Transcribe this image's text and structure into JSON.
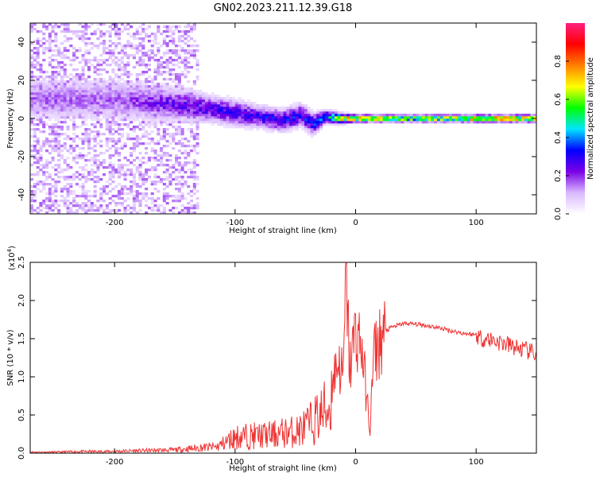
{
  "title": "GN02.2023.211.12.39.G18",
  "chart_data": [
    {
      "type": "heatmap",
      "xlabel": "Height of straight line (km)",
      "ylabel": "Frequency (Hz)",
      "xlim": [
        -270,
        150
      ],
      "ylim": [
        -50,
        50
      ],
      "x_ticks": [
        -200,
        -100,
        0,
        100
      ],
      "y_ticks": [
        -40,
        -20,
        0,
        20,
        40
      ],
      "colorbar": {
        "label": "Normalized spectral amplitude",
        "range": [
          0,
          1
        ],
        "ticks": [
          "0.0",
          "0.2",
          "0.4",
          "0.6",
          "0.8"
        ],
        "colormap": [
          "#ffffff",
          "#d9b8ff",
          "#7a00e6",
          "#0000ff",
          "#00e5ff",
          "#00ff00",
          "#ffff00",
          "#ff8000",
          "#ff0000",
          "#ff2080"
        ]
      },
      "ridge": [
        {
          "x": -200,
          "center": 10,
          "spread": 9,
          "amplitude": 0.18
        },
        {
          "x": -160,
          "center": 8,
          "spread": 8,
          "amplitude": 0.25
        },
        {
          "x": -140,
          "center": 7,
          "spread": 7,
          "amplitude": 0.28
        },
        {
          "x": -120,
          "center": 5,
          "spread": 6,
          "amplitude": 0.3
        },
        {
          "x": -100,
          "center": 3,
          "spread": 6,
          "amplitude": 0.3
        },
        {
          "x": -80,
          "center": 1,
          "spread": 5,
          "amplitude": 0.32
        },
        {
          "x": -60,
          "center": -1,
          "spread": 5,
          "amplitude": 0.35
        },
        {
          "x": -45,
          "center": 2,
          "spread": 5,
          "amplitude": 0.35
        },
        {
          "x": -35,
          "center": -3,
          "spread": 5,
          "amplitude": 0.35
        },
        {
          "x": -25,
          "center": 1,
          "spread": 3,
          "amplitude": 0.4
        },
        {
          "x": -10,
          "center": 0,
          "spread": 2,
          "amplitude": 0.8
        },
        {
          "x": 0,
          "center": 0,
          "spread": 1.5,
          "amplitude": 0.85
        },
        {
          "x": 50,
          "center": 0,
          "spread": 1.5,
          "amplitude": 0.7
        },
        {
          "x": 100,
          "center": 0,
          "spread": 1.5,
          "amplitude": 0.85
        },
        {
          "x": 150,
          "center": 0,
          "spread": 1.5,
          "amplitude": 0.85
        }
      ]
    },
    {
      "type": "line",
      "xlabel": "Height of straight line (km)",
      "ylabel": "SNR (10 * v/v)",
      "y_scale_label": "(x10",
      "y_scale_exponent": "4",
      "y_scale_suffix": ")",
      "xlim": [
        -270,
        150
      ],
      "ylim": [
        0,
        2.5
      ],
      "x_ticks": [
        -200,
        -100,
        0,
        100
      ],
      "y_ticks": [
        "0.0",
        "0.5",
        "1.0",
        "1.5",
        "2.0",
        "2.5"
      ],
      "color": "#ee3333",
      "series": [
        {
          "x": [
            -270,
            -250,
            -230,
            -210,
            -190,
            -170,
            -150,
            -130,
            -115,
            -100,
            -90,
            -80,
            -70,
            -60,
            -50,
            -40,
            -30,
            -20,
            -15,
            -10,
            -8,
            -5,
            0,
            5,
            10,
            12,
            15,
            20,
            25,
            30,
            40,
            50,
            60,
            70,
            80,
            90,
            100,
            105,
            110,
            120,
            130,
            140,
            150
          ],
          "values": [
            0.02,
            0.02,
            0.03,
            0.03,
            0.04,
            0.05,
            0.06,
            0.1,
            0.12,
            0.3,
            0.32,
            0.33,
            0.34,
            0.38,
            0.4,
            0.5,
            0.7,
            0.9,
            1.2,
            1.0,
            2.5,
            1.1,
            1.6,
            1.4,
            0.6,
            0.3,
            1.3,
            1.45,
            1.6,
            1.65,
            1.7,
            1.69,
            1.67,
            1.64,
            1.6,
            1.57,
            1.55,
            1.5,
            1.5,
            1.45,
            1.4,
            1.35,
            1.3
          ]
        }
      ]
    }
  ]
}
